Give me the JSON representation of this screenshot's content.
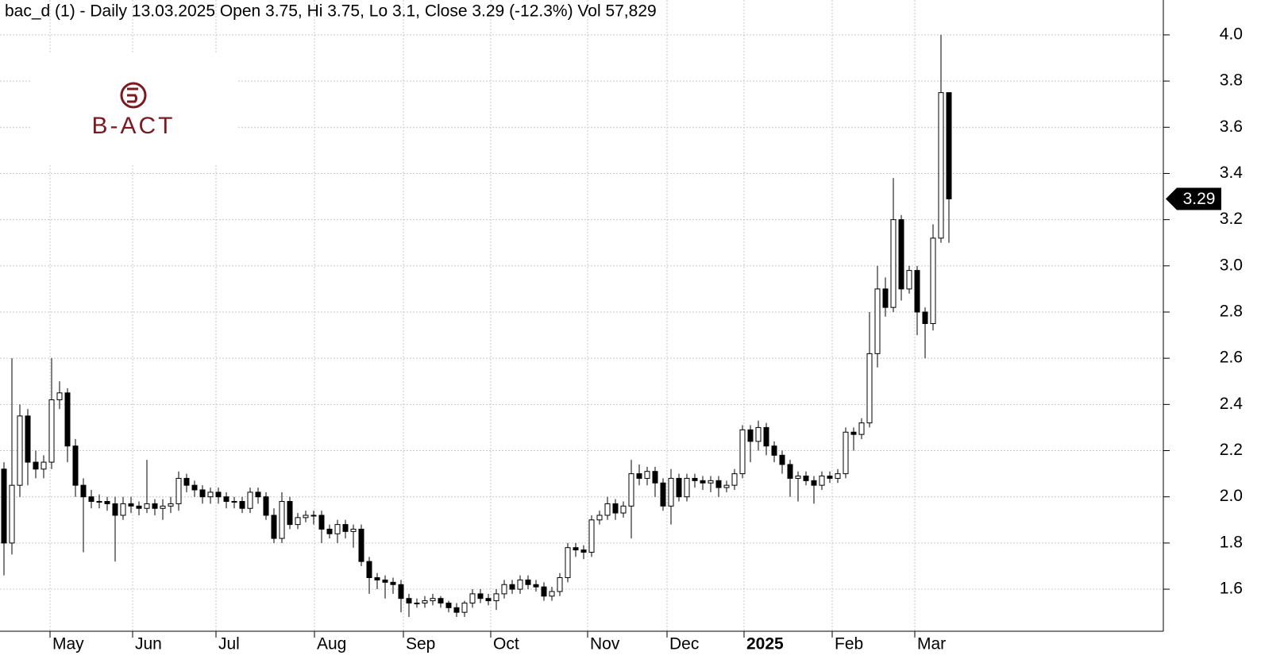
{
  "chart_data": {
    "type": "candlestick",
    "title": "bac_d (1) - Daily 13.03.2025 Open 3.75, Hi 3.75, Lo 3.1, Close 3.29 (-12.3%) Vol 57,829",
    "logo": "B-ACT",
    "x": [
      0,
      1,
      2,
      3,
      4,
      5,
      6,
      7,
      8,
      9,
      10,
      11,
      12,
      13,
      14,
      15,
      16,
      17,
      18,
      19,
      20,
      21,
      22,
      23,
      24,
      25,
      26,
      27,
      28,
      29,
      30,
      31,
      32,
      33,
      34,
      35,
      36,
      37,
      38,
      39,
      40,
      41,
      42,
      43,
      44,
      45,
      46,
      47,
      48,
      49,
      50,
      51,
      52,
      53,
      54,
      55,
      56,
      57,
      58,
      59,
      60,
      61,
      62,
      63,
      64,
      65,
      66,
      67,
      68,
      69,
      70,
      71,
      72,
      73,
      74,
      75,
      76,
      77,
      78,
      79,
      80,
      81,
      82,
      83,
      84,
      85,
      86,
      87,
      88,
      89,
      90,
      91,
      92,
      93,
      94,
      95,
      96,
      97,
      98,
      99,
      100,
      101,
      102,
      103,
      104,
      105,
      106,
      107,
      108,
      109,
      110,
      111,
      112,
      113,
      114,
      115,
      116,
      117,
      118,
      119
    ],
    "open": [
      2.12,
      1.8,
      2.05,
      2.35,
      2.15,
      2.12,
      2.15,
      2.42,
      2.45,
      2.22,
      2.05,
      2.0,
      1.98,
      1.98,
      1.97,
      1.92,
      1.97,
      1.96,
      1.95,
      1.97,
      1.95,
      1.96,
      1.97,
      2.08,
      2.05,
      2.03,
      2.0,
      2.02,
      2.0,
      1.98,
      1.98,
      1.95,
      2.02,
      2.0,
      1.92,
      1.82,
      1.98,
      1.88,
      1.91,
      1.92,
      1.92,
      1.86,
      1.84,
      1.88,
      1.85,
      1.86,
      1.72,
      1.65,
      1.64,
      1.63,
      1.62,
      1.56,
      1.54,
      1.54,
      1.55,
      1.56,
      1.54,
      1.52,
      1.5,
      1.54,
      1.58,
      1.56,
      1.55,
      1.58,
      1.62,
      1.6,
      1.64,
      1.62,
      1.61,
      1.57,
      1.59,
      1.65,
      1.78,
      1.77,
      1.76,
      1.9,
      1.92,
      1.97,
      1.93,
      1.96,
      2.1,
      2.08,
      2.11,
      2.06,
      1.96,
      2.08,
      2.0,
      2.08,
      2.07,
      2.06,
      2.07,
      2.04,
      2.05,
      2.1,
      2.29,
      2.24,
      2.3,
      2.22,
      2.18,
      2.14,
      2.08,
      2.09,
      2.07,
      2.05,
      2.09,
      2.08,
      2.1,
      2.28,
      2.27,
      2.32,
      2.62,
      2.9,
      2.82,
      3.2,
      2.9,
      2.98,
      2.8,
      2.75,
      3.12,
      3.75
    ],
    "high": [
      2.15,
      2.6,
      2.4,
      2.38,
      2.2,
      2.18,
      2.6,
      2.5,
      2.47,
      2.25,
      2.08,
      2.03,
      2.01,
      2.0,
      2.0,
      2.0,
      2.0,
      1.98,
      2.16,
      1.99,
      1.99,
      2.0,
      2.11,
      2.1,
      2.07,
      2.05,
      2.04,
      2.04,
      2.02,
      2.0,
      2.0,
      2.04,
      2.04,
      2.02,
      1.95,
      2.02,
      2.0,
      1.93,
      1.94,
      1.94,
      1.94,
      1.88,
      1.9,
      1.9,
      1.88,
      1.88,
      1.74,
      1.67,
      1.66,
      1.65,
      1.64,
      1.58,
      1.56,
      1.57,
      1.58,
      1.57,
      1.55,
      1.54,
      1.55,
      1.6,
      1.6,
      1.58,
      1.6,
      1.64,
      1.64,
      1.66,
      1.66,
      1.64,
      1.63,
      1.61,
      1.67,
      1.8,
      1.8,
      1.79,
      1.92,
      1.94,
      2.0,
      1.99,
      1.98,
      2.16,
      2.14,
      2.13,
      2.13,
      2.08,
      2.12,
      2.1,
      2.1,
      2.1,
      2.09,
      2.09,
      2.09,
      2.07,
      2.12,
      2.31,
      2.31,
      2.33,
      2.32,
      2.24,
      2.2,
      2.16,
      2.11,
      2.11,
      2.09,
      2.11,
      2.11,
      2.12,
      2.3,
      2.3,
      2.34,
      2.8,
      3.0,
      2.95,
      3.38,
      3.22,
      3.0,
      3.0,
      2.82,
      3.18,
      4.0,
      3.75
    ],
    "low": [
      1.66,
      1.75,
      2.0,
      2.05,
      2.08,
      2.08,
      2.12,
      2.38,
      2.15,
      2.0,
      1.76,
      1.95,
      1.95,
      1.94,
      1.72,
      1.9,
      1.93,
      1.92,
      1.93,
      1.92,
      1.9,
      1.93,
      1.94,
      2.02,
      2.0,
      1.97,
      1.97,
      1.97,
      1.95,
      1.95,
      1.93,
      1.93,
      1.97,
      1.9,
      1.8,
      1.8,
      1.86,
      1.86,
      1.89,
      1.88,
      1.8,
      1.82,
      1.8,
      1.82,
      1.78,
      1.7,
      1.58,
      1.6,
      1.56,
      1.58,
      1.5,
      1.48,
      1.52,
      1.52,
      1.53,
      1.52,
      1.5,
      1.48,
      1.48,
      1.52,
      1.54,
      1.53,
      1.51,
      1.56,
      1.58,
      1.58,
      1.6,
      1.59,
      1.55,
      1.55,
      1.57,
      1.63,
      1.74,
      1.73,
      1.74,
      1.88,
      1.9,
      1.9,
      1.91,
      1.82,
      2.05,
      2.05,
      2.0,
      1.94,
      1.88,
      1.98,
      1.98,
      2.04,
      2.03,
      2.02,
      2.0,
      2.02,
      2.03,
      2.08,
      2.15,
      2.2,
      2.18,
      2.15,
      2.1,
      2.0,
      1.98,
      2.05,
      1.97,
      2.03,
      2.06,
      2.06,
      2.08,
      2.2,
      2.25,
      2.3,
      2.56,
      2.78,
      2.8,
      2.85,
      2.88,
      2.7,
      2.6,
      2.72,
      3.1,
      3.1
    ],
    "close": [
      1.8,
      2.05,
      2.35,
      2.15,
      2.12,
      2.15,
      2.42,
      2.45,
      2.22,
      2.05,
      2.0,
      1.98,
      1.98,
      1.97,
      1.92,
      1.97,
      1.96,
      1.95,
      1.97,
      1.95,
      1.96,
      1.97,
      2.08,
      2.05,
      2.03,
      2.0,
      2.02,
      2.0,
      1.98,
      1.98,
      1.95,
      2.02,
      2.0,
      1.92,
      1.82,
      1.98,
      1.88,
      1.91,
      1.92,
      1.92,
      1.86,
      1.84,
      1.88,
      1.85,
      1.86,
      1.72,
      1.65,
      1.64,
      1.63,
      1.62,
      1.56,
      1.54,
      1.54,
      1.55,
      1.56,
      1.54,
      1.52,
      1.5,
      1.54,
      1.58,
      1.56,
      1.55,
      1.58,
      1.62,
      1.6,
      1.64,
      1.62,
      1.61,
      1.57,
      1.59,
      1.65,
      1.78,
      1.77,
      1.76,
      1.9,
      1.92,
      1.97,
      1.93,
      1.96,
      2.1,
      2.08,
      2.11,
      2.06,
      1.96,
      2.08,
      2.0,
      2.08,
      2.07,
      2.06,
      2.07,
      2.04,
      2.05,
      2.1,
      2.29,
      2.24,
      2.3,
      2.22,
      2.18,
      2.14,
      2.08,
      2.09,
      2.07,
      2.05,
      2.09,
      2.08,
      2.1,
      2.28,
      2.27,
      2.32,
      2.62,
      2.9,
      2.82,
      3.2,
      2.9,
      2.98,
      2.8,
      2.75,
      3.12,
      3.75,
      3.29
    ],
    "up_color": "#ffffff",
    "down_color": "#000000",
    "xlim": [
      -0.5,
      146
    ],
    "xticks": [
      {
        "value": 5.8,
        "label": "May"
      },
      {
        "value": 16.2,
        "label": "Jun"
      },
      {
        "value": 26.7,
        "label": "Jul"
      },
      {
        "value": 39.1,
        "label": "Aug"
      },
      {
        "value": 50.3,
        "label": "Sep"
      },
      {
        "value": 61.3,
        "label": "Oct"
      },
      {
        "value": 73.5,
        "label": "Nov"
      },
      {
        "value": 83.5,
        "label": "Dec"
      },
      {
        "value": 93.2,
        "label": "2025"
      },
      {
        "value": 104.3,
        "label": "Feb"
      },
      {
        "value": 114.7,
        "label": "Mar"
      }
    ],
    "ylim": [
      1.418,
      4.151
    ],
    "yticks": [
      1.6,
      1.8,
      {
        "value": 2,
        "label": "2.0"
      },
      2.2,
      2.4,
      2.6,
      2.8,
      {
        "value": 3,
        "label": "3.0"
      },
      3.2,
      3.4,
      3.6,
      3.8,
      {
        "value": 4,
        "label": "4.0"
      }
    ],
    "grid": true
  }
}
